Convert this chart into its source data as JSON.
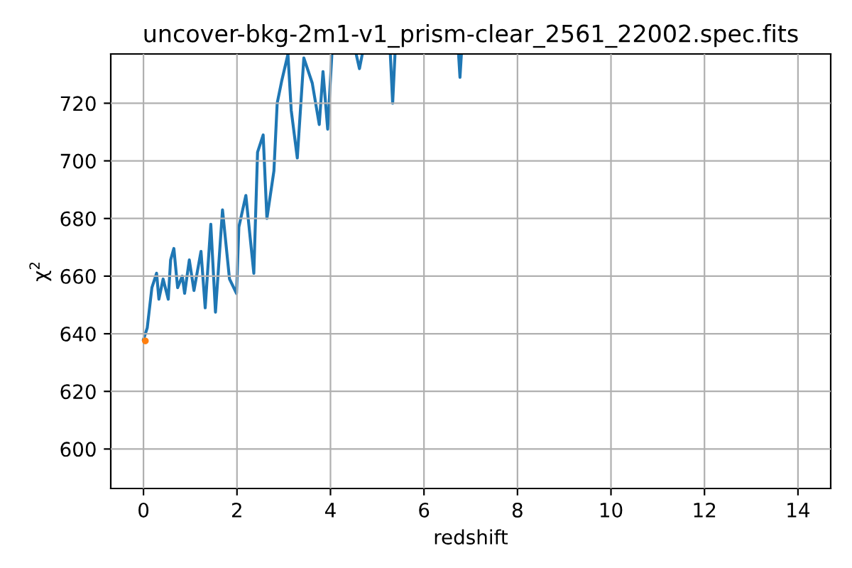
{
  "chart_data": {
    "type": "line",
    "title": "uncover-bkg-2m1-v1_prism-clear_2561_22002.spec.fits",
    "xlabel": "redshift",
    "ylabel": "χ$^{2}$",
    "xlim": [
      -0.7,
      14.7
    ],
    "ylim": [
      586.3,
      737.1
    ],
    "xticks": [
      0,
      2,
      4,
      6,
      8,
      10,
      12,
      14
    ],
    "yticks": [
      600,
      620,
      640,
      660,
      680,
      700,
      720
    ],
    "grid": true,
    "series": [
      {
        "color": "#1f77b4",
        "x": [
          0,
          0.08,
          0.18,
          0.28,
          0.33,
          0.42,
          0.53,
          0.58,
          0.65,
          0.73,
          0.83,
          0.88,
          0.98,
          1.08,
          1.23,
          1.32,
          1.44,
          1.54,
          1.69,
          1.84,
          1.99,
          2.04,
          2.19,
          2.36,
          2.44,
          2.56,
          2.64,
          2.79,
          2.86,
          2.96,
          3.09,
          3.16,
          3.29,
          3.43,
          3.61,
          3.76,
          3.84,
          3.94,
          4.03,
          4.3,
          4.55,
          4.62,
          4.68,
          5.0,
          5.28,
          5.33,
          5.38,
          6.0,
          6.74,
          6.77,
          6.8
        ],
        "values": [
          638,
          642,
          656,
          661,
          652,
          659,
          652,
          665.6,
          669.6,
          656,
          660,
          654,
          665.6,
          655,
          668.6,
          649,
          678,
          647.5,
          683,
          659,
          654,
          677,
          688,
          661,
          703,
          709,
          680,
          696.5,
          720,
          728,
          737,
          717.6,
          701,
          735.7,
          727,
          712.6,
          731,
          711,
          737,
          null,
          737,
          732,
          737,
          null,
          737,
          720,
          737,
          null,
          737,
          729,
          737
        ]
      },
      {
        "type": "scatter",
        "color": "#ff7f0e",
        "x": [
          0.04
        ],
        "values": [
          637.5
        ]
      }
    ]
  }
}
